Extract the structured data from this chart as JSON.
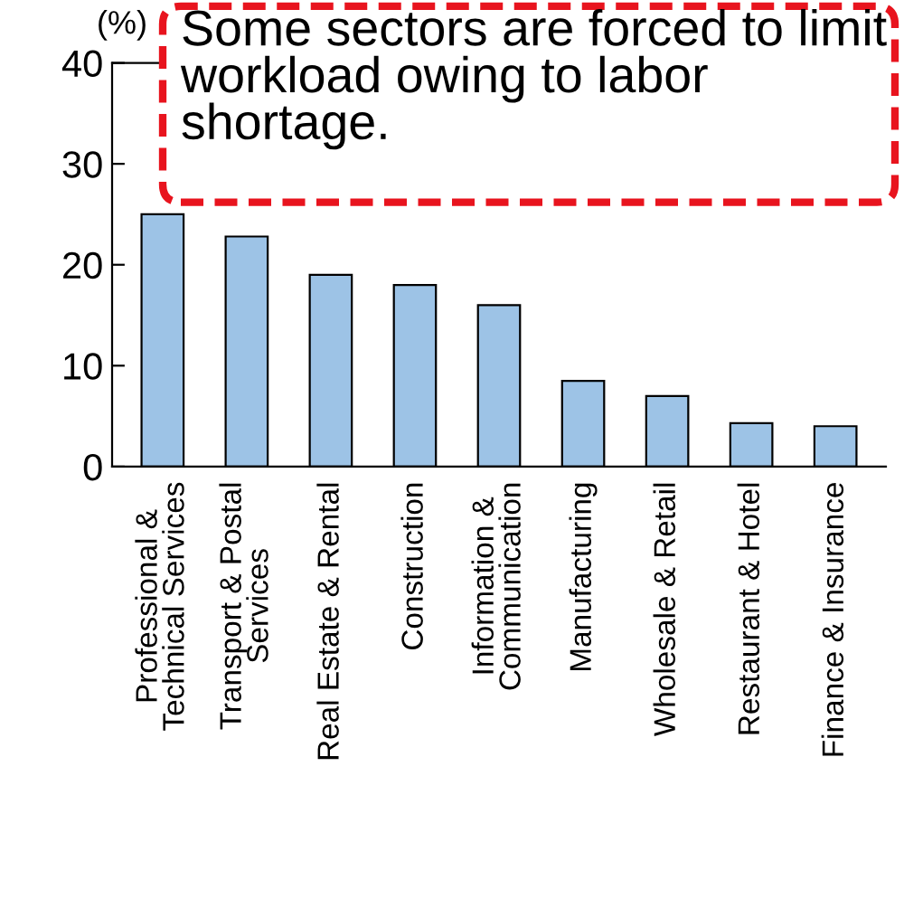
{
  "chart_data": {
    "type": "bar",
    "ylabel": "(%)",
    "categories": [
      "Professional &\nTechnical Services",
      "Transport & Postal\nServices",
      "Real Estate & Rental",
      "Construction",
      "Information &\nCommunication",
      "Manufacturing",
      "Wholesale & Retail",
      "Restaurant & Hotel",
      "Finance & Insurance"
    ],
    "values": [
      25,
      22.8,
      19,
      18,
      16,
      8.5,
      7,
      4.3,
      4
    ],
    "color": "#9dc3e6",
    "ylim": [
      0,
      40
    ],
    "yticks": [
      0,
      10,
      20,
      30,
      40
    ],
    "grid": false,
    "annotations": [
      "Some sectors are forced to limit workload owing to labor shortage."
    ]
  }
}
